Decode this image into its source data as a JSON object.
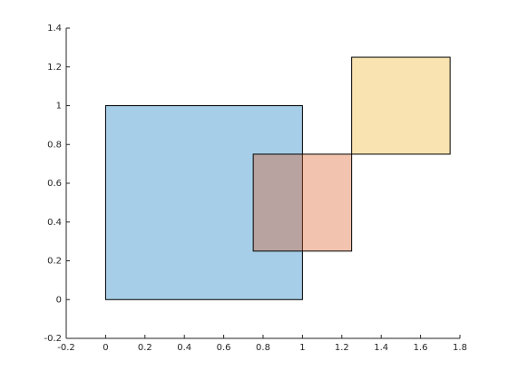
{
  "chart_data": {
    "type": "rectangle",
    "rectangles": [
      {
        "x": 0,
        "y": 0,
        "width": 1,
        "height": 1,
        "color": "#0072bd"
      },
      {
        "x": 0.75,
        "y": 0.25,
        "width": 0.5,
        "height": 0.5,
        "color": "#d95319"
      },
      {
        "x": 1.25,
        "y": 0.75,
        "width": 0.5,
        "height": 0.5,
        "color": "#edb120"
      }
    ],
    "alpha": 0.35,
    "xlim": [
      -0.2,
      1.8
    ],
    "xticks": [
      -0.2,
      0,
      0.2,
      0.4,
      0.6,
      0.8,
      1,
      1.2,
      1.4,
      1.6,
      1.8
    ],
    "ylim": [
      -0.2,
      1.4
    ],
    "yticks": [
      -0.2,
      0,
      0.2,
      0.4,
      0.6,
      0.8,
      1,
      1.2,
      1.4
    ],
    "grid": false
  }
}
